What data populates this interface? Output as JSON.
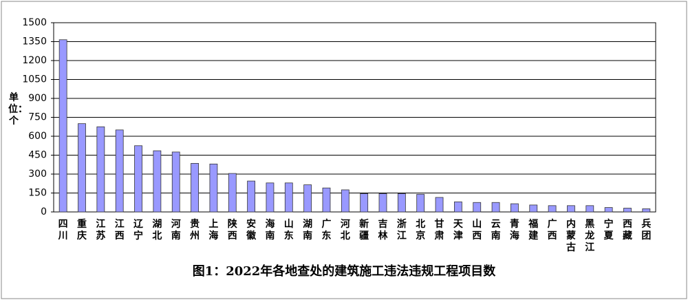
{
  "chart_data": {
    "type": "bar",
    "title": "图1：2022年各地查处的建筑施工违法违规工程项目数",
    "y_label": "单位：个",
    "categories": [
      "四川",
      "重庆",
      "江苏",
      "江西",
      "辽宁",
      "湖北",
      "河南",
      "贵州",
      "上海",
      "陕西",
      "安徽",
      "海南",
      "山东",
      "湖南",
      "广东",
      "河北",
      "新疆",
      "吉林",
      "浙江",
      "北京",
      "甘肃",
      "天津",
      "山西",
      "云南",
      "青海",
      "福建",
      "广西",
      "内蒙古",
      "黑龙江",
      "宁夏",
      "西藏",
      "兵团"
    ],
    "values": [
      1365,
      700,
      675,
      650,
      525,
      485,
      475,
      385,
      380,
      305,
      245,
      230,
      230,
      215,
      190,
      175,
      145,
      145,
      145,
      140,
      115,
      80,
      75,
      75,
      65,
      55,
      50,
      50,
      50,
      35,
      30,
      25
    ],
    "color": "#9999ff",
    "ylim": [
      0,
      1500
    ],
    "yticks": [
      0,
      150,
      300,
      450,
      600,
      750,
      900,
      1050,
      1200,
      1350,
      1500
    ],
    "grid": true
  }
}
